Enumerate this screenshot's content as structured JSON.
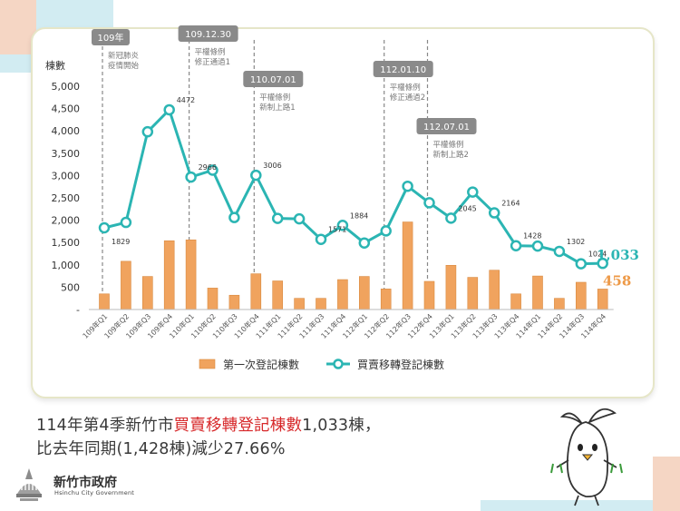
{
  "chart_data": {
    "type": "bar+line",
    "ylabel": "棟數",
    "ylim": [
      0,
      5000
    ],
    "yticks": [
      "-",
      "500",
      "1,000",
      "1,500",
      "2,000",
      "2,500",
      "3,000",
      "3,500",
      "4,000",
      "4,500",
      "5,000"
    ],
    "categories": [
      "109年Q1",
      "109年Q2",
      "109年Q3",
      "109年Q4",
      "110年Q1",
      "110年Q2",
      "110年Q3",
      "110年Q4",
      "111年Q1",
      "111年Q2",
      "111年Q3",
      "111年Q4",
      "112年Q1",
      "112年Q2",
      "112年Q3",
      "112年Q4",
      "113年Q1",
      "113年Q2",
      "113年Q3",
      "113年Q4",
      "114年Q1",
      "114年Q2",
      "114年Q3",
      "114年Q4"
    ],
    "series": [
      {
        "name": "第一次登記棟數",
        "type": "bar",
        "color": "#f0a35e",
        "values": [
          350,
          1080,
          740,
          1540,
          1560,
          480,
          320,
          800,
          640,
          250,
          250,
          670,
          740,
          460,
          1960,
          630,
          990,
          720,
          880,
          350,
          750,
          250,
          610,
          458
        ]
      },
      {
        "name": "買賣移轉登記棟數",
        "type": "line",
        "color": "#2bb5b3",
        "values": [
          1829,
          1950,
          3980,
          4472,
          2966,
          3120,
          2060,
          3006,
          2040,
          2030,
          1571,
          1884,
          1490,
          1760,
          2760,
          2390,
          2045,
          2630,
          2164,
          1428,
          1420,
          1302,
          1024,
          1033
        ]
      }
    ],
    "data_labels": [
      {
        "index": 0,
        "text": "1829"
      },
      {
        "index": 3,
        "text": "4472"
      },
      {
        "index": 4,
        "text": "2966"
      },
      {
        "index": 7,
        "text": "3006"
      },
      {
        "index": 10,
        "text": "1571"
      },
      {
        "index": 11,
        "text": "1884"
      },
      {
        "index": 16,
        "text": "2045"
      },
      {
        "index": 18,
        "text": "2164"
      },
      {
        "index": 19,
        "text": "1428"
      },
      {
        "index": 21,
        "text": "1302"
      },
      {
        "index": 22,
        "text": "1024"
      }
    ],
    "end_labels": {
      "line": "1,033",
      "bar": "458"
    },
    "annotations": [
      {
        "at": 0,
        "date": "109年",
        "text": [
          "新冠肺炎",
          "疫情開始"
        ]
      },
      {
        "at": 4,
        "date": "109.12.30",
        "text": [
          "平權條例",
          "修正通過1"
        ]
      },
      {
        "at": 7,
        "date": "110.07.01",
        "text": [
          "平權條例",
          "新制上路1"
        ]
      },
      {
        "at": 13,
        "date": "112.01.10",
        "text": [
          "平權條例",
          "修正通過2"
        ]
      },
      {
        "at": 15,
        "date": "112.07.01",
        "text": [
          "平權條例",
          "新制上路2"
        ]
      }
    ],
    "legend_position": "bottom",
    "grid": false
  },
  "headline": {
    "line1_prefix": "114年第4季新竹市",
    "line1_highlight": "買賣移轉登記棟數",
    "line1_suffix": "1,033棟，",
    "line2": "比去年同期(1,428棟)減少27.66%"
  },
  "logo": {
    "name": "新竹市政府",
    "english": "Hsinchu City Government"
  },
  "colors": {
    "accent_red": "#d7282a",
    "teal": "#2bb5b3",
    "orange": "#f0a35e",
    "peach": "#f5d6c4",
    "light_blue": "#d2ecf2"
  }
}
